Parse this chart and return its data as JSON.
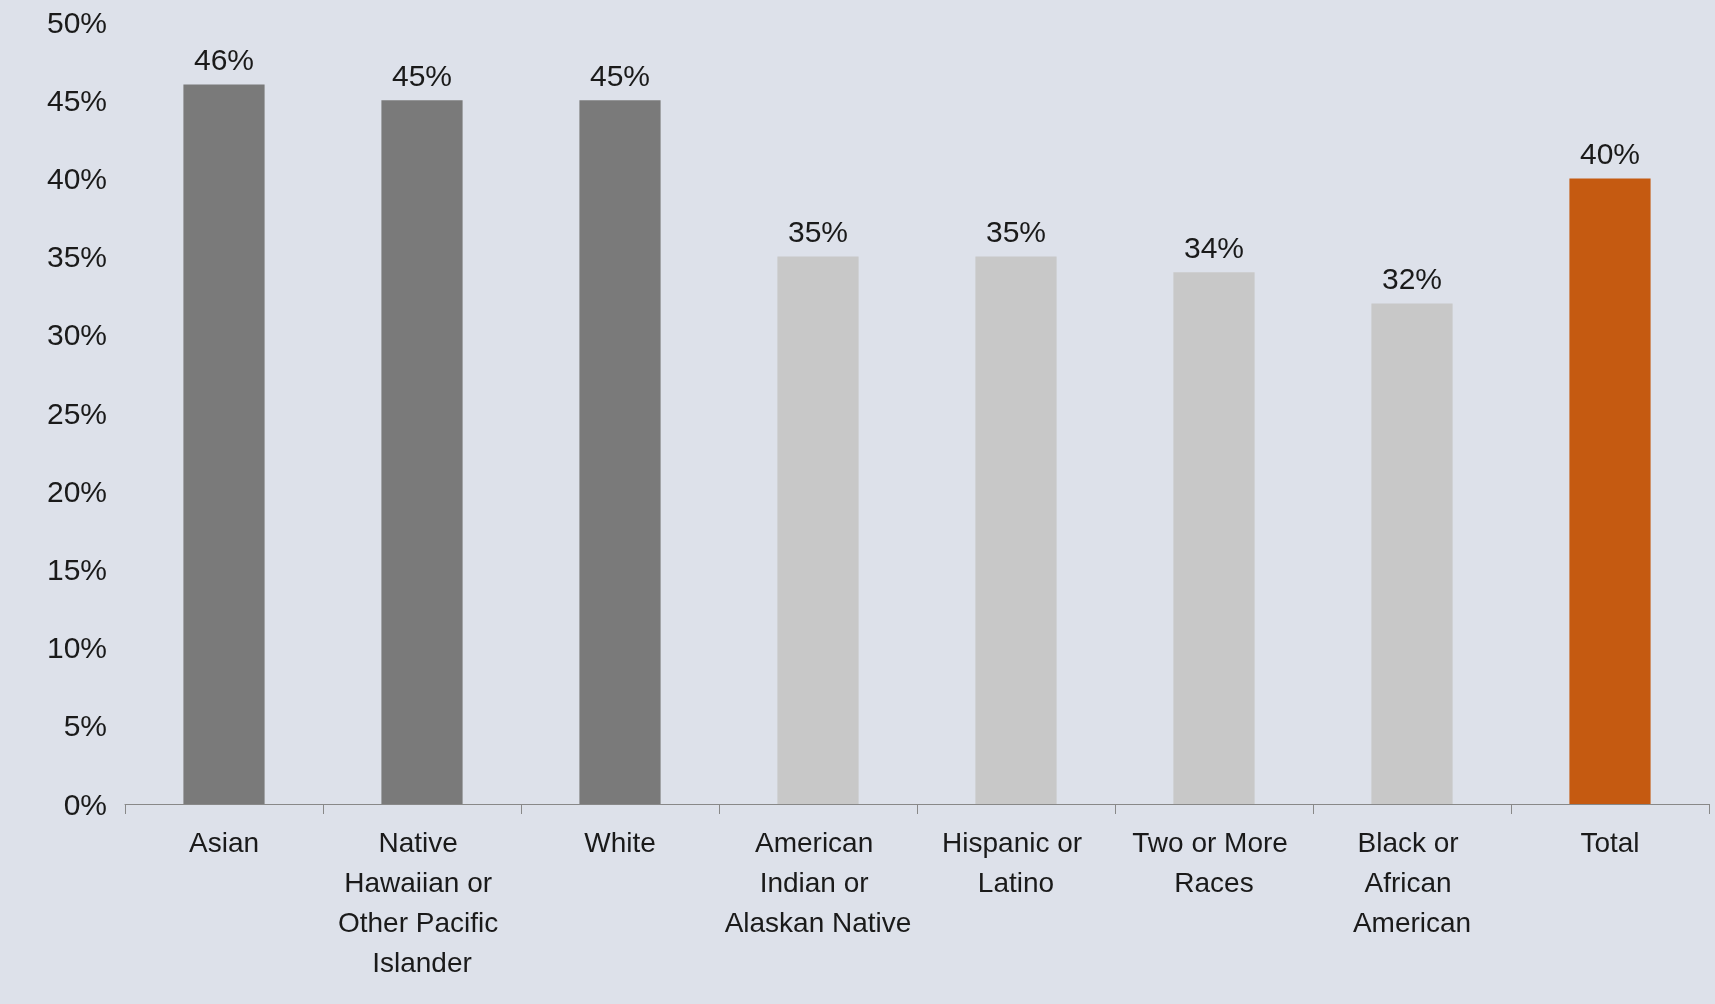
{
  "chart_data": {
    "type": "bar",
    "categories": [
      "Asian",
      "Native Hawaiian or Other Pacific Islander",
      "White",
      "American Indian or Alaskan Native",
      "Hispanic or Latino",
      "Two or More Races",
      "Black or African American",
      "Total"
    ],
    "values": [
      46,
      45,
      45,
      35,
      35,
      34,
      32,
      40
    ],
    "value_labels": [
      "46%",
      "45%",
      "45%",
      "35%",
      "35%",
      "34%",
      "32%",
      "40%"
    ],
    "colors": [
      "#7a7a7a",
      "#7a7a7a",
      "#7a7a7a",
      "#c8c8c8",
      "#c8c8c8",
      "#c8c8c8",
      "#c8c8c8",
      "#c55a11"
    ],
    "ylim": [
      0,
      50
    ],
    "yticks": [
      {
        "value": 0,
        "label": "0%"
      },
      {
        "value": 5,
        "label": "5%"
      },
      {
        "value": 10,
        "label": "10%"
      },
      {
        "value": 15,
        "label": "15%"
      },
      {
        "value": 20,
        "label": "20%"
      },
      {
        "value": 25,
        "label": "25%"
      },
      {
        "value": 30,
        "label": "30%"
      },
      {
        "value": 35,
        "label": "35%"
      },
      {
        "value": 40,
        "label": "40%"
      },
      {
        "value": 45,
        "label": "45%"
      },
      {
        "value": 50,
        "label": "50%"
      }
    ]
  }
}
